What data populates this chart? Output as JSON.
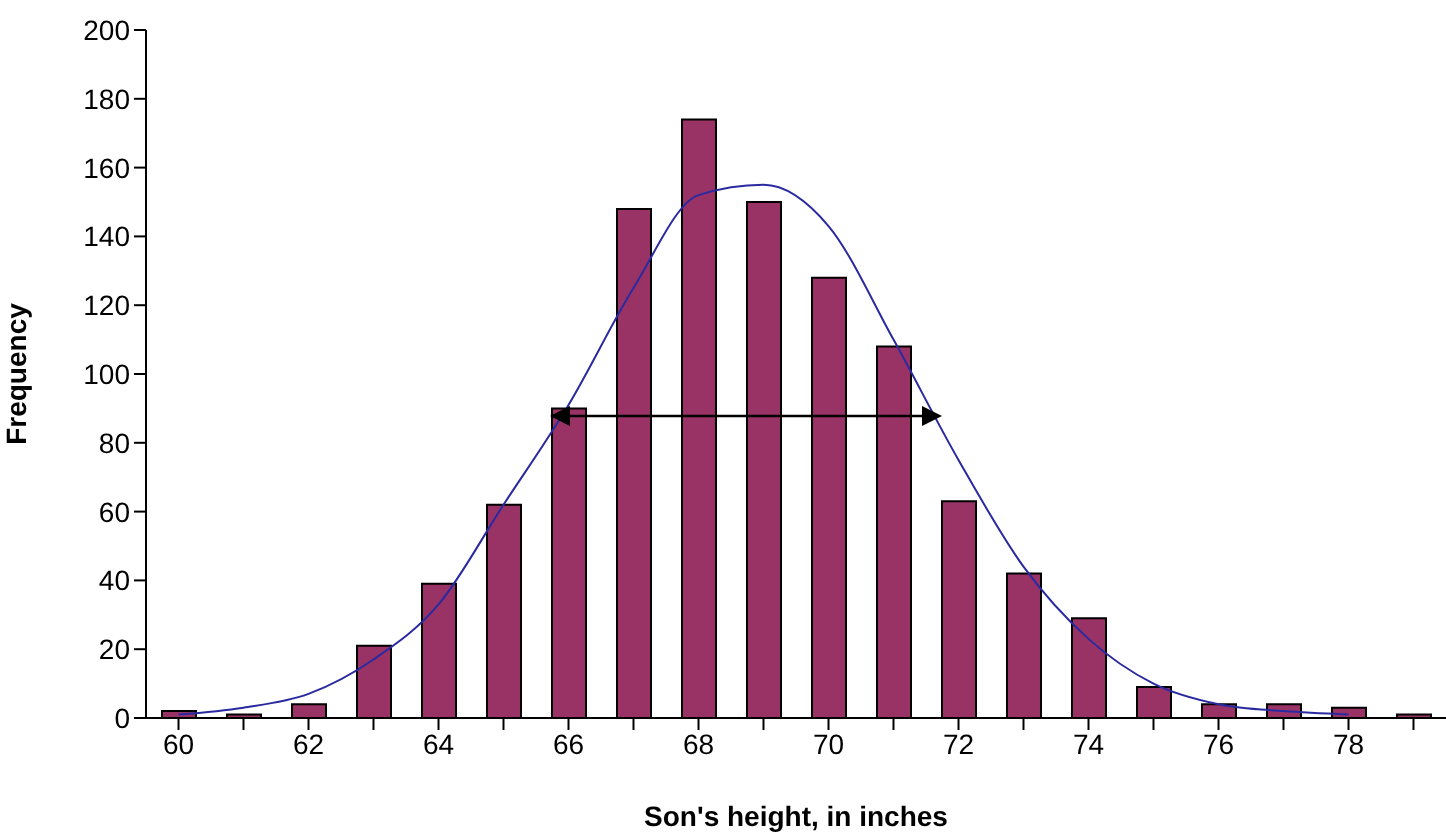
{
  "chart_data": {
    "type": "bar",
    "xlabel": "Son's height, in inches",
    "ylabel": "Frequency",
    "categories": [
      "60",
      null,
      "62",
      null,
      "64",
      null,
      "66",
      null,
      "68",
      null,
      "70",
      null,
      "72",
      null,
      "74",
      null,
      "76",
      null,
      "78",
      null
    ],
    "series": [
      {
        "color": "#993366",
        "values": [
          2,
          1,
          4,
          21,
          39,
          62,
          90,
          148,
          174,
          150,
          128,
          108,
          63,
          42,
          29,
          9,
          4,
          4,
          3,
          1
        ]
      },
      {
        "type": "line",
        "color": "#2a2aa0",
        "values": [
          1,
          3,
          7,
          17,
          33,
          62,
          91,
          125,
          152,
          155,
          143,
          110,
          75,
          44,
          23,
          10,
          4,
          2,
          1,
          null
        ]
      }
    ],
    "ylim": [
      0,
      200
    ],
    "yticks": [
      0,
      20,
      40,
      60,
      80,
      100,
      120,
      140,
      160,
      180,
      200
    ],
    "grid": false,
    "legend": false,
    "marker": "none",
    "line_style": "solid"
  }
}
